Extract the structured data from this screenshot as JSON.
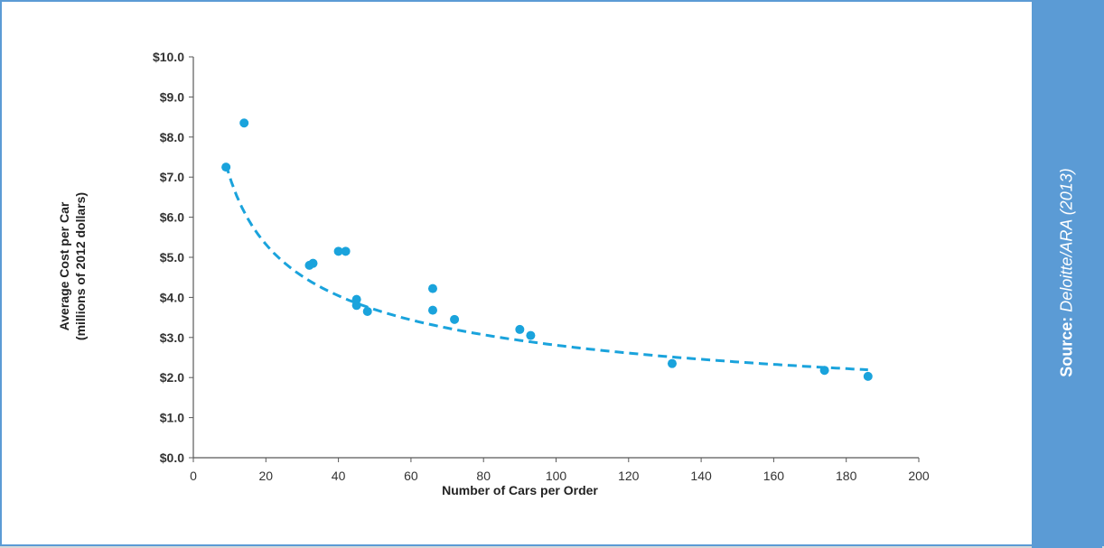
{
  "source": {
    "label": "Source:",
    "citation": "Deloitte/ARA (2013)"
  },
  "colors": {
    "accent": "#5b9bd5",
    "points": "#1aa3dc",
    "trendline": "#1aa3dc",
    "axis": "#595959"
  },
  "chart_data": {
    "type": "scatter",
    "title": "",
    "xlabel": "Number of Cars per Order",
    "ylabel_line1": "Average Cost per Car",
    "ylabel_line2": "(millions of 2012 dollars)",
    "xlim": [
      0,
      200
    ],
    "ylim": [
      0,
      10
    ],
    "x_ticks": [
      0,
      20,
      40,
      60,
      80,
      100,
      120,
      140,
      160,
      180,
      200
    ],
    "y_ticks": [
      "$0.0",
      "$1.0",
      "$2.0",
      "$3.0",
      "$4.0",
      "$5.0",
      "$6.0",
      "$7.0",
      "$8.0",
      "$9.0",
      "$10.0"
    ],
    "y_tick_values": [
      0,
      1,
      2,
      3,
      4,
      5,
      6,
      7,
      8,
      9,
      10
    ],
    "grid": false,
    "series": [
      {
        "points": [
          [
            9,
            7.25
          ],
          [
            14,
            8.35
          ],
          [
            32,
            4.8
          ],
          [
            33,
            4.85
          ],
          [
            40,
            5.15
          ],
          [
            42,
            5.15
          ],
          [
            45,
            3.95
          ],
          [
            45,
            3.8
          ],
          [
            48,
            3.65
          ],
          [
            66,
            4.22
          ],
          [
            66,
            3.68
          ],
          [
            72,
            3.45
          ],
          [
            90,
            3.2
          ],
          [
            93,
            3.05
          ],
          [
            132,
            2.35
          ],
          [
            174,
            2.18
          ],
          [
            186,
            2.03
          ]
        ]
      }
    ],
    "trendline": {
      "style": "dashed",
      "x_range": [
        9,
        186
      ],
      "fit": "power",
      "coefficient": 17.51,
      "exponent": -0.3975
    }
  }
}
